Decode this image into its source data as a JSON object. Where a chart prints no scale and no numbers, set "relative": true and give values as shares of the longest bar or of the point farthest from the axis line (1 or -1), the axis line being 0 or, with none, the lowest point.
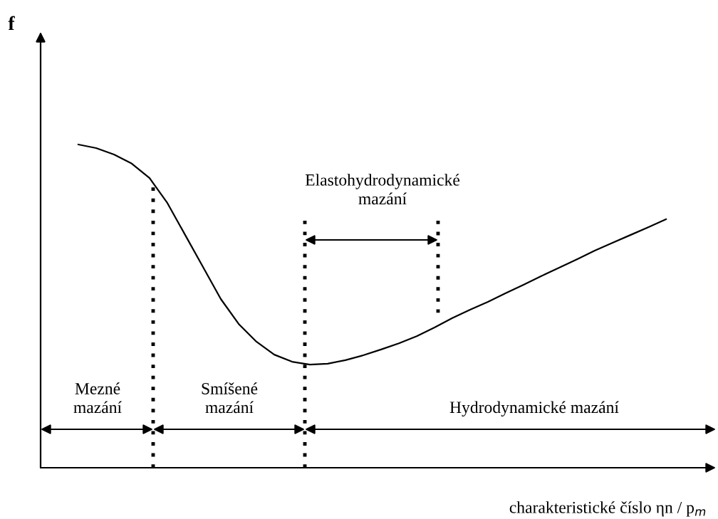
{
  "chart_data": {
    "type": "line",
    "relative": true,
    "xlabel": "charakteristické číslo ηn / p$_{m}$",
    "categories": [
      null,
      null,
      null,
      null,
      null,
      null,
      null,
      null,
      null,
      null,
      null,
      null,
      null,
      null,
      null,
      null,
      null,
      null,
      null,
      null,
      null,
      null,
      null,
      null,
      null,
      null,
      null,
      null,
      null,
      null,
      null,
      null,
      null,
      null
    ],
    "series": [
      {
        "color": "#000000",
        "values": [
          1.0,
          0.989,
          0.969,
          0.941,
          0.896,
          0.819,
          0.72,
          0.621,
          0.522,
          0.445,
          0.39,
          0.35,
          0.328,
          0.319,
          0.322,
          0.333,
          0.348,
          0.366,
          0.385,
          0.407,
          0.434,
          0.463,
          0.489,
          0.513,
          0.54,
          0.566,
          0.593,
          0.619,
          0.645,
          0.672,
          0.696,
          0.72,
          0.744,
          0.769
        ]
      }
    ],
    "annotations": [
      "Mezné\nmazání",
      "Smíšené\nmazání",
      "Hydrodynamické mazání",
      "Elastohydrodynamické\nmazání",
      "f"
    ],
    "legend": false,
    "marker": "none",
    "line_style": "solid"
  }
}
